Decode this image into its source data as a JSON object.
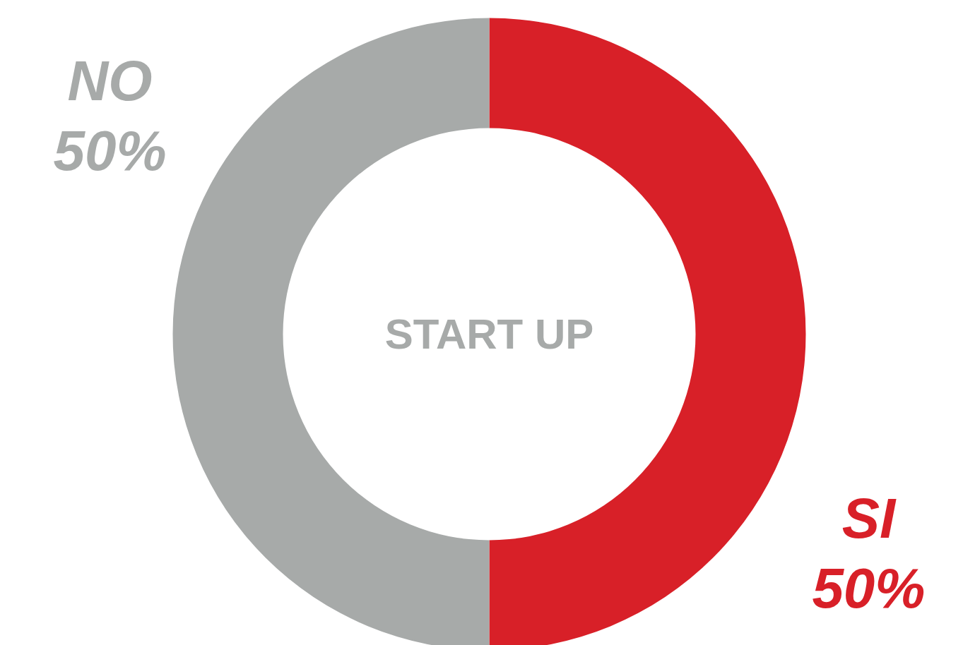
{
  "chart_data": {
    "type": "donut",
    "title": "START UP",
    "categories": [
      "SI",
      "NO"
    ],
    "values": [
      50,
      50
    ],
    "colors": [
      "#d82028",
      "#a7aaa9"
    ],
    "value_labels": [
      "50%",
      "50%"
    ]
  }
}
